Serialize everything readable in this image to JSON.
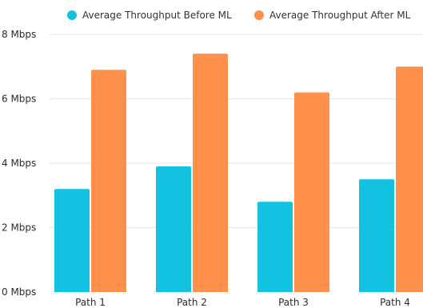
{
  "chart_data": {
    "type": "bar",
    "title": "",
    "xlabel": "",
    "ylabel": "",
    "categories": [
      "Path 1",
      "Path 2",
      "Path 3",
      "Path 4"
    ],
    "series": [
      {
        "name": "Average Throughput Before ML",
        "color": "#12C2E0",
        "values": [
          3.2,
          3.9,
          2.8,
          3.5
        ]
      },
      {
        "name": "Average Throughput After ML",
        "color": "#FF914D",
        "values": [
          6.9,
          7.4,
          6.2,
          7.0
        ]
      }
    ],
    "ylim": [
      0,
      8
    ],
    "y_ticks": [
      {
        "value": 0,
        "label": "0 Mbps"
      },
      {
        "value": 2,
        "label": "2 Mbps"
      },
      {
        "value": 4,
        "label": "4 Mbps"
      },
      {
        "value": 6,
        "label": "6 Mbps"
      },
      {
        "value": 8,
        "label": "8 Mbps"
      }
    ],
    "grid": true,
    "legend_position": "top"
  }
}
